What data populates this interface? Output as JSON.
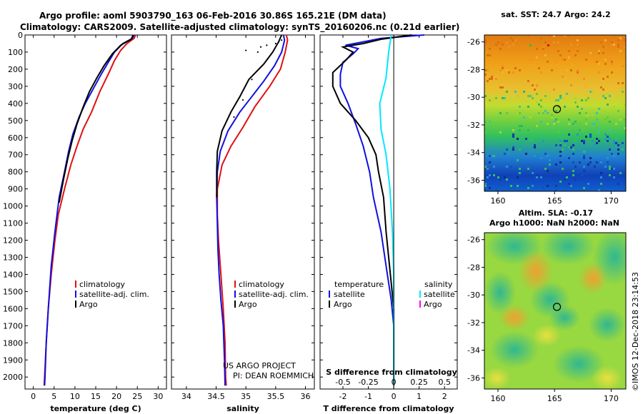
{
  "header": {
    "title_line1": "Argo profile: aoml 5903790_163 06-Feb-2016 30.86S 165.21E (DM data)",
    "title_line2": "Climatology: CARS2009. Satellite-adjusted climatology: synTS_20160206.nc (0.21d earlier)"
  },
  "credits": {
    "project": "US ARGO PROJECT",
    "pi": "PI: DEAN ROEMMICH",
    "imos_stamp": "©IMOS 12-Dec-2018 23:14:53"
  },
  "colors": {
    "climatology": "#e01010",
    "satellite": "#1010e0",
    "argo": "#000000",
    "salinity_satellite": "#00e8ff",
    "salinity_argo": "#ff00ff"
  },
  "chart_data": [
    {
      "id": "temperature",
      "type": "line",
      "xlabel": "temperature (deg C)",
      "ylabel": "",
      "xlim": [
        -2,
        32
      ],
      "ylim": [
        2070,
        0
      ],
      "x_ticks": [
        0,
        5,
        10,
        15,
        20,
        25,
        30
      ],
      "y_ticks": [
        0,
        100,
        200,
        300,
        400,
        500,
        600,
        700,
        800,
        900,
        1000,
        1100,
        1200,
        1300,
        1400,
        1500,
        1600,
        1700,
        1800,
        1900,
        2000
      ],
      "legend": [
        "climatology",
        "satellite-adj. clim.",
        "Argo"
      ],
      "series": [
        {
          "name": "climatology",
          "color": "#e01010",
          "points": [
            [
              24.6,
              0
            ],
            [
              24.2,
              20
            ],
            [
              22.5,
              50
            ],
            [
              21,
              90
            ],
            [
              19.5,
              150
            ],
            [
              18,
              230
            ],
            [
              16,
              330
            ],
            [
              14,
              450
            ],
            [
              12,
              550
            ],
            [
              10.5,
              650
            ],
            [
              9,
              760
            ],
            [
              7.5,
              900
            ],
            [
              6,
              1050
            ],
            [
              5.2,
              1200
            ],
            [
              4.3,
              1400
            ],
            [
              3.6,
              1600
            ],
            [
              3.1,
              1800
            ],
            [
              2.7,
              2000
            ],
            [
              2.6,
              2050
            ]
          ]
        },
        {
          "name": "satellite-adj. clim.",
          "color": "#1010e0",
          "points": [
            [
              24.2,
              0
            ],
            [
              23.8,
              20
            ],
            [
              21.5,
              50
            ],
            [
              19.5,
              100
            ],
            [
              18,
              160
            ],
            [
              16.3,
              230
            ],
            [
              14.5,
              310
            ],
            [
              12.5,
              400
            ],
            [
              11,
              480
            ],
            [
              9.5,
              580
            ],
            [
              8.5,
              680
            ],
            [
              7.5,
              800
            ],
            [
              6.2,
              950
            ],
            [
              5.2,
              1150
            ],
            [
              4.3,
              1350
            ],
            [
              3.6,
              1600
            ],
            [
              3.1,
              1800
            ],
            [
              2.8,
              2000
            ],
            [
              2.7,
              2050
            ]
          ]
        },
        {
          "name": "Argo",
          "color": "#000000",
          "points": [
            [
              24,
              0
            ],
            [
              23.5,
              25
            ],
            [
              21,
              60
            ],
            [
              19,
              110
            ],
            [
              17,
              180
            ],
            [
              15.3,
              250
            ],
            [
              13.5,
              330
            ],
            [
              12,
              420
            ],
            [
              10.5,
              520
            ],
            [
              9.3,
              620
            ],
            [
              8.3,
              720
            ],
            [
              7.2,
              850
            ],
            [
              6.2,
              980
            ]
          ]
        }
      ]
    },
    {
      "id": "salinity",
      "type": "line",
      "xlabel": "salinity",
      "ylabel": "",
      "xlim": [
        33.75,
        36.15
      ],
      "ylim": [
        2070,
        0
      ],
      "x_ticks": [
        34,
        34.5,
        35,
        35.5,
        36
      ],
      "legend": [
        "climatology",
        "satellite-adj. clim.",
        "Argo"
      ],
      "series": [
        {
          "name": "climatology",
          "color": "#e01010",
          "points": [
            [
              35.68,
              0
            ],
            [
              35.7,
              30
            ],
            [
              35.66,
              100
            ],
            [
              35.58,
              200
            ],
            [
              35.4,
              300
            ],
            [
              35.15,
              420
            ],
            [
              34.95,
              540
            ],
            [
              34.75,
              650
            ],
            [
              34.6,
              760
            ],
            [
              34.52,
              900
            ],
            [
              34.52,
              1050
            ],
            [
              34.54,
              1200
            ],
            [
              34.58,
              1400
            ],
            [
              34.62,
              1600
            ],
            [
              34.65,
              1800
            ],
            [
              34.66,
              2000
            ],
            [
              34.67,
              2050
            ]
          ]
        },
        {
          "name": "satellite-adj. clim.",
          "color": "#1010e0",
          "points": [
            [
              35.63,
              0
            ],
            [
              35.65,
              30
            ],
            [
              35.6,
              100
            ],
            [
              35.48,
              180
            ],
            [
              35.3,
              270
            ],
            [
              35.1,
              360
            ],
            [
              34.9,
              450
            ],
            [
              34.7,
              560
            ],
            [
              34.57,
              680
            ],
            [
              34.52,
              800
            ],
            [
              34.51,
              950
            ],
            [
              34.52,
              1100
            ],
            [
              34.53,
              1250
            ],
            [
              34.55,
              1400
            ],
            [
              34.58,
              1550
            ],
            [
              34.62,
              1700
            ],
            [
              34.64,
              1900
            ],
            [
              34.65,
              2050
            ]
          ]
        },
        {
          "name": "Argo",
          "color": "#000000",
          "points": [
            [
              35.6,
              0
            ],
            [
              35.55,
              40
            ],
            [
              35.45,
              100
            ],
            [
              35.3,
              170
            ],
            [
              35.05,
              260
            ],
            [
              34.9,
              360
            ],
            [
              34.75,
              450
            ],
            [
              34.6,
              560
            ],
            [
              34.52,
              680
            ],
            [
              34.51,
              800
            ],
            [
              34.51,
              950
            ]
          ]
        }
      ]
    },
    {
      "id": "difference",
      "type": "line",
      "xlabel": "T difference from climatology",
      "top_label": "S difference from climatology",
      "ylabel": "",
      "xlim": [
        -2.9,
        2.5
      ],
      "ylim": [
        2070,
        0
      ],
      "x_ticks": [
        -2,
        -1,
        0,
        1,
        2
      ],
      "s_ticks": [
        -0.5,
        -0.25,
        0,
        0.25,
        0.5
      ],
      "s_tick_labels": [
        "-0.5",
        "-0.25",
        "0",
        "0.25",
        "0.5"
      ],
      "legend_left_title": "temperature",
      "legend_left": [
        "satellite",
        "Argo"
      ],
      "legend_right_title": "salinity",
      "legend_right": [
        "satellite",
        "Argo"
      ],
      "series": [
        {
          "name": "T satellite",
          "color": "#1010e0",
          "points": [
            [
              1.2,
              0
            ],
            [
              -0.5,
              20
            ],
            [
              -1.2,
              40
            ],
            [
              -1.9,
              60
            ],
            [
              -1.4,
              80
            ],
            [
              -1.6,
              110
            ],
            [
              -2.0,
              160
            ],
            [
              -2.1,
              230
            ],
            [
              -2.1,
              300
            ],
            [
              -1.8,
              400
            ],
            [
              -1.5,
              520
            ],
            [
              -1.2,
              650
            ],
            [
              -0.95,
              800
            ],
            [
              -0.8,
              950
            ],
            [
              -0.5,
              1150
            ],
            [
              -0.3,
              1350
            ],
            [
              -0.1,
              1550
            ],
            [
              0,
              1700
            ],
            [
              0,
              2050
            ]
          ]
        },
        {
          "name": "T Argo",
          "color": "#000000",
          "points": [
            [
              0.7,
              0
            ],
            [
              -0.5,
              25
            ],
            [
              -1.2,
              50
            ],
            [
              -2.0,
              70
            ],
            [
              -1.6,
              100
            ],
            [
              -1.9,
              150
            ],
            [
              -2.4,
              220
            ],
            [
              -2.4,
              300
            ],
            [
              -2.1,
              400
            ],
            [
              -1.5,
              500
            ],
            [
              -1.0,
              600
            ],
            [
              -0.7,
              700
            ],
            [
              -0.6,
              800
            ],
            [
              -0.4,
              950
            ],
            [
              -0.3,
              1150
            ],
            [
              -0.2,
              1300
            ],
            [
              -0.1,
              1450
            ],
            [
              0,
              1600
            ],
            [
              0,
              2050
            ]
          ]
        },
        {
          "name": "S satellite",
          "color": "#00e8ff",
          "points": [
            [
              -0.1,
              0
            ],
            [
              -0.2,
              100
            ],
            [
              -0.3,
              250
            ],
            [
              -0.55,
              400
            ],
            [
              -0.5,
              550
            ],
            [
              -0.3,
              700
            ],
            [
              -0.15,
              900
            ],
            [
              -0.05,
              1150
            ],
            [
              0,
              1400
            ],
            [
              0,
              2050
            ]
          ]
        }
      ]
    },
    {
      "id": "sst_map",
      "type": "heatmap",
      "title": "sat. SST: 24.7 Argo: 24.2",
      "x_ticks": [
        160,
        165,
        170
      ],
      "y_ticks": [
        -26,
        -28,
        -30,
        -32,
        -34,
        -36
      ],
      "xlim": [
        158.8,
        171.3
      ],
      "ylim": [
        -36.8,
        -25.5
      ],
      "argo_position": [
        165.21,
        -30.86
      ]
    },
    {
      "id": "sla_map",
      "type": "heatmap",
      "title": "Altim. SLA: -0.17",
      "subtitle": "Argo h1000: NaN h2000: NaN",
      "x_ticks": [
        160,
        165,
        170
      ],
      "y_ticks": [
        -26,
        -28,
        -30,
        -32,
        -34,
        -36
      ],
      "xlim": [
        158.8,
        171.3
      ],
      "ylim": [
        -36.8,
        -25.5
      ],
      "argo_position": [
        165.21,
        -30.86
      ]
    }
  ]
}
